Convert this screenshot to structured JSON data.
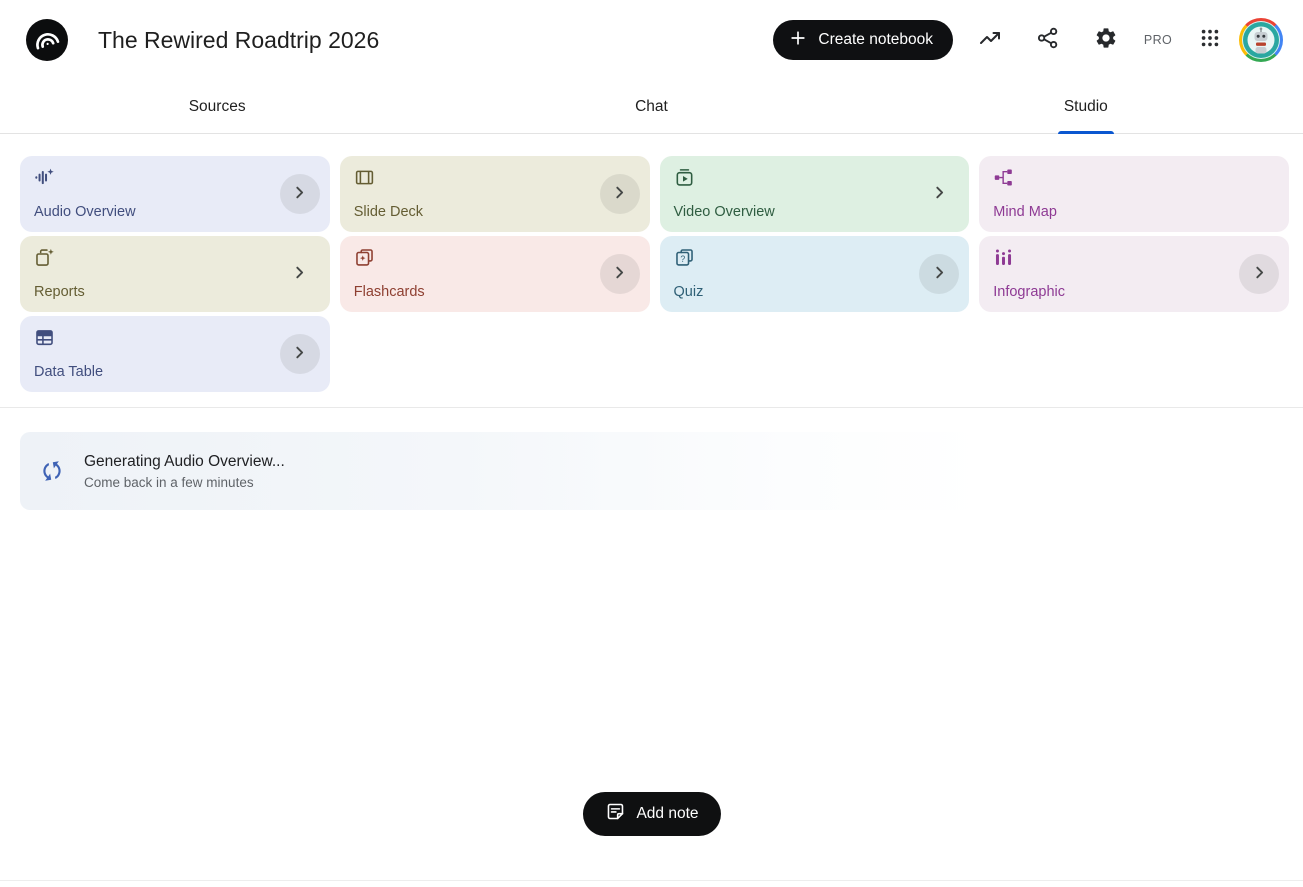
{
  "header": {
    "title": "The Rewired Roadtrip 2026",
    "create_button_label": "Create notebook",
    "pro_badge": "PRO"
  },
  "tabs": [
    {
      "label": "Sources",
      "active": false
    },
    {
      "label": "Chat",
      "active": false
    },
    {
      "label": "Studio",
      "active": true
    }
  ],
  "studio_cards": [
    {
      "label": "Audio Overview",
      "icon": "audio-waveform-sparkle-icon",
      "bg": "#e8ebf7",
      "fg": "#414e7e",
      "chevron": "circle"
    },
    {
      "label": "Slide Deck",
      "icon": "slide-frame-icon",
      "bg": "#ecebdc",
      "fg": "#645d33",
      "chevron": "circle"
    },
    {
      "label": "Video Overview",
      "icon": "video-play-icon",
      "bg": "#def0e2",
      "fg": "#2f5d41",
      "chevron": "plain"
    },
    {
      "label": "Mind Map",
      "icon": "mind-map-icon",
      "bg": "#f3ecf2",
      "fg": "#8e3a94",
      "chevron": "none"
    },
    {
      "label": "Reports",
      "icon": "report-sparkle-icon",
      "bg": "#ecebdc",
      "fg": "#645d33",
      "chevron": "plain"
    },
    {
      "label": "Flashcards",
      "icon": "flashcards-star-icon",
      "bg": "#f9e9e7",
      "fg": "#8e3f31",
      "chevron": "circle"
    },
    {
      "label": "Quiz",
      "icon": "quiz-cards-icon",
      "bg": "#ddedf4",
      "fg": "#2f6076",
      "chevron": "circle"
    },
    {
      "label": "Infographic",
      "icon": "bar-chart-icon",
      "bg": "#f3ecf2",
      "fg": "#8e3a94",
      "chevron": "circle"
    },
    {
      "label": "Data Table",
      "icon": "data-table-icon",
      "bg": "#e8ebf7",
      "fg": "#414e7e",
      "chevron": "circle"
    }
  ],
  "status": {
    "title": "Generating Audio Overview...",
    "subtitle": "Come back in a few minutes"
  },
  "add_note_label": "Add note",
  "colors": {
    "accent_blue": "#0b57d0",
    "button_black": "#0f1012",
    "sync_icon_blue": "#3f63b5"
  }
}
